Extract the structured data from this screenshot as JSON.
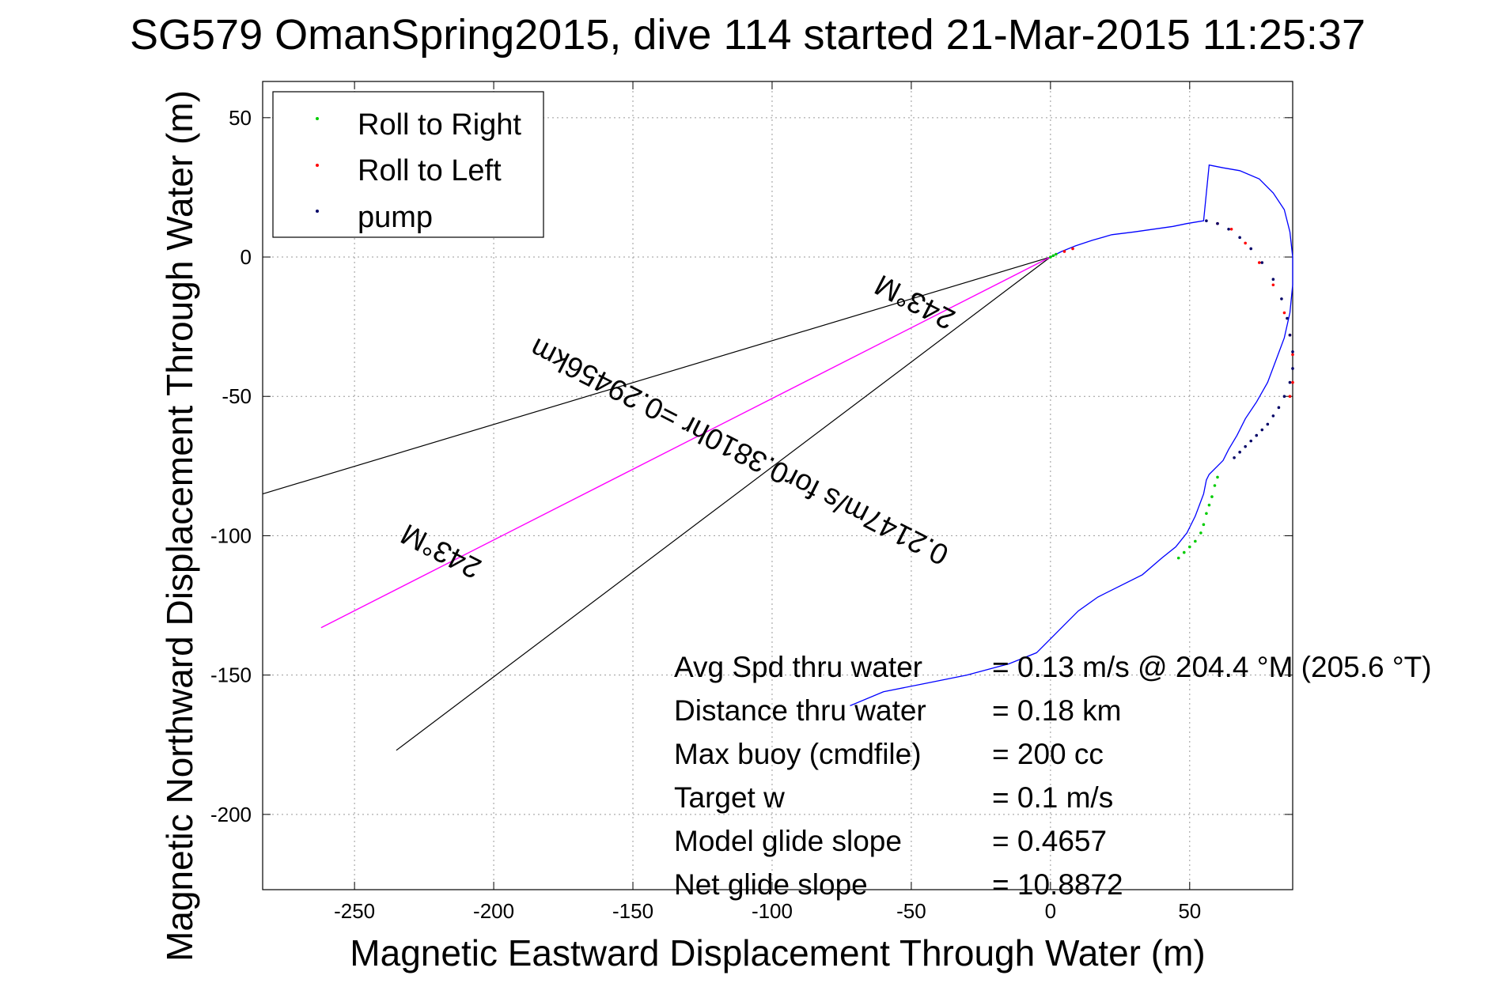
{
  "chart_data": {
    "type": "line",
    "title": "SG579 OmanSpring2015, dive 114 started 21-Mar-2015 11:25:37",
    "xlabel": "Magnetic Eastward Displacement Through Water (m)",
    "ylabel": "Magnetic Northward Displacement Through Water (m)",
    "xlim": [
      -283,
      87
    ],
    "ylim": [
      -227,
      63
    ],
    "xticks": [
      -250,
      -200,
      -150,
      -100,
      -50,
      0,
      50
    ],
    "yticks": [
      50,
      0,
      -50,
      -100,
      -150,
      -200
    ],
    "grid": true,
    "legend_placement": "top-left",
    "legend": [
      {
        "label": "Roll to Right",
        "color": "#00cc00"
      },
      {
        "label": "Roll to Left",
        "color": "#ff0000"
      },
      {
        "label": "pump",
        "color": "#000066"
      }
    ],
    "track": {
      "color": "#0000ff",
      "x": [
        -72,
        -60,
        -45,
        -30,
        -15,
        -5,
        0,
        5,
        10,
        17,
        25,
        33,
        40,
        45,
        49,
        52,
        55,
        56,
        57,
        60,
        62,
        64,
        67,
        70,
        74,
        78,
        81,
        84,
        86,
        87,
        87,
        86,
        84,
        80,
        75,
        68,
        62,
        57,
        55,
        49,
        44,
        37,
        30,
        22,
        15,
        9,
        4,
        2,
        0
      ],
      "y": [
        -161,
        -156,
        -153,
        -150,
        -146,
        -142,
        -137,
        -132,
        -127,
        -122,
        -118,
        -114,
        -108,
        -104,
        -99,
        -93,
        -85,
        -80,
        -78,
        -75,
        -73,
        -69,
        -64,
        -58,
        -52,
        -45,
        -37,
        -29,
        -20,
        -10,
        0,
        9,
        17,
        23,
        28,
        31,
        32,
        33,
        13,
        12,
        11,
        10,
        9,
        8,
        6,
        4,
        2,
        1,
        0
      ]
    },
    "roll_right_points": {
      "color": "#00cc00",
      "x": [
        46,
        48,
        50,
        52,
        54,
        55,
        56,
        57,
        58,
        59,
        60,
        0,
        1,
        2
      ],
      "y": [
        -108,
        -106,
        -104,
        -102,
        -99,
        -96,
        -92,
        -89,
        -86,
        -82,
        -79,
        0,
        0.5,
        1
      ]
    },
    "roll_left_points": {
      "color": "#ff0000",
      "x": [
        60,
        65,
        70,
        75,
        80,
        84,
        86,
        87,
        87,
        86,
        5,
        8
      ],
      "y": [
        12,
        10,
        5,
        -2,
        -10,
        -20,
        -28,
        -35,
        -45,
        -50,
        2,
        3
      ]
    },
    "pump_points": {
      "color": "#000066",
      "x": [
        56,
        60,
        64,
        68,
        72,
        76,
        80,
        83,
        85,
        86,
        87,
        87,
        86,
        84,
        82,
        80,
        78,
        76,
        74,
        72,
        70,
        68,
        66
      ],
      "y": [
        13,
        12,
        10,
        7,
        3,
        -2,
        -8,
        -15,
        -22,
        -28,
        -34,
        -40,
        -45,
        -50,
        -54,
        -57,
        -60,
        -62,
        -64,
        -66,
        -68,
        -70,
        -72
      ]
    },
    "course_line": {
      "color": "#ff00ff",
      "x": [
        0,
        -262
      ],
      "y": [
        0,
        -133
      ]
    },
    "wedge_lines": {
      "color": "#000000",
      "lines": [
        {
          "x": [
            0,
            -283
          ],
          "y": [
            0,
            -85
          ]
        },
        {
          "x": [
            0,
            -235
          ],
          "y": [
            0,
            -177
          ]
        }
      ]
    },
    "annotations": {
      "course_label": "0.2147m/s for0.3810hr =0.29456km",
      "heading_top": "243°M",
      "heading_left": "243°M"
    },
    "stats": [
      {
        "label": "Avg Spd thru water",
        "value": "=  0.13 m/s @ 204.4 °M (205.6 °T)"
      },
      {
        "label": "Distance thru water",
        "value": "=  0.18 km"
      },
      {
        "label": "Max buoy (cmdfile)",
        "value": "= 200 cc"
      },
      {
        "label": "Target w",
        "value": "= 0.1 m/s"
      },
      {
        "label": "Model glide slope",
        "value": "= 0.4657"
      },
      {
        "label": "Net glide slope",
        "value": "= 10.8872"
      }
    ]
  }
}
